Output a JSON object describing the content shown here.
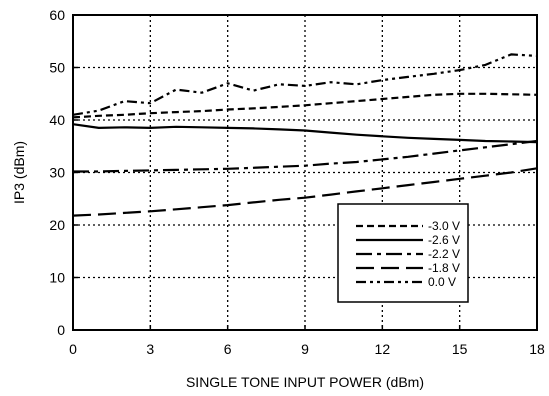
{
  "chart_data": {
    "type": "line",
    "xlabel": "SINGLE TONE INPUT POWER (dBm)",
    "ylabel": "IP3 (dBm)",
    "xlim": [
      0,
      18
    ],
    "ylim": [
      0,
      60
    ],
    "xticks": [
      0,
      3,
      6,
      9,
      12,
      15,
      18
    ],
    "yticks": [
      0,
      10,
      20,
      30,
      40,
      50,
      60
    ],
    "grid": true,
    "legend_position": "bottom-right",
    "series": [
      {
        "name": "-3.0 V",
        "dash": "short-dash",
        "x": [
          0,
          1,
          2,
          3,
          4,
          5,
          6,
          7,
          8,
          9,
          10,
          11,
          12,
          13,
          14,
          15,
          16,
          17,
          18
        ],
        "y": [
          40.5,
          40.8,
          41.0,
          41.3,
          41.5,
          41.7,
          42.0,
          42.2,
          42.5,
          42.8,
          43.2,
          43.6,
          44.0,
          44.4,
          44.8,
          45.0,
          45.0,
          44.9,
          44.8
        ]
      },
      {
        "name": "-2.6 V",
        "dash": "solid",
        "x": [
          0,
          1,
          2,
          3,
          4,
          5,
          6,
          7,
          8,
          9,
          10,
          11,
          12,
          13,
          14,
          15,
          16,
          17,
          18
        ],
        "y": [
          39.2,
          38.5,
          38.6,
          38.5,
          38.7,
          38.6,
          38.5,
          38.4,
          38.2,
          38.0,
          37.6,
          37.2,
          36.9,
          36.6,
          36.4,
          36.2,
          36.0,
          35.9,
          35.8
        ]
      },
      {
        "name": "-2.2 V",
        "dash": "dash-dot",
        "x": [
          0,
          1,
          2,
          3,
          4,
          5,
          6,
          7,
          8,
          9,
          10,
          11,
          12,
          13,
          14,
          15,
          16,
          17,
          18
        ],
        "y": [
          30.2,
          30.2,
          30.3,
          30.4,
          30.5,
          30.6,
          30.7,
          30.9,
          31.1,
          31.3,
          31.7,
          32.0,
          32.5,
          33.0,
          33.6,
          34.2,
          34.8,
          35.4,
          36.0
        ]
      },
      {
        "name": "-1.8 V",
        "dash": "long-dash",
        "x": [
          0,
          1,
          2,
          3,
          4,
          5,
          6,
          7,
          8,
          9,
          10,
          11,
          12,
          13,
          14,
          15,
          16,
          17,
          18
        ],
        "y": [
          21.8,
          22.0,
          22.3,
          22.6,
          23.0,
          23.4,
          23.8,
          24.3,
          24.8,
          25.2,
          25.8,
          26.4,
          27.0,
          27.6,
          28.2,
          28.8,
          29.4,
          30.0,
          30.8
        ]
      },
      {
        "name": "0.0 V",
        "dash": "dash-dot-dot",
        "x": [
          0,
          1,
          2,
          3,
          4,
          5,
          6,
          7,
          8,
          9,
          10,
          11,
          12,
          13,
          14,
          15,
          16,
          17,
          18
        ],
        "y": [
          41.0,
          41.8,
          43.6,
          43.2,
          45.8,
          45.2,
          47.0,
          45.6,
          46.8,
          46.5,
          47.2,
          46.8,
          47.6,
          48.2,
          48.8,
          49.5,
          50.5,
          52.5,
          52.2
        ]
      }
    ]
  }
}
